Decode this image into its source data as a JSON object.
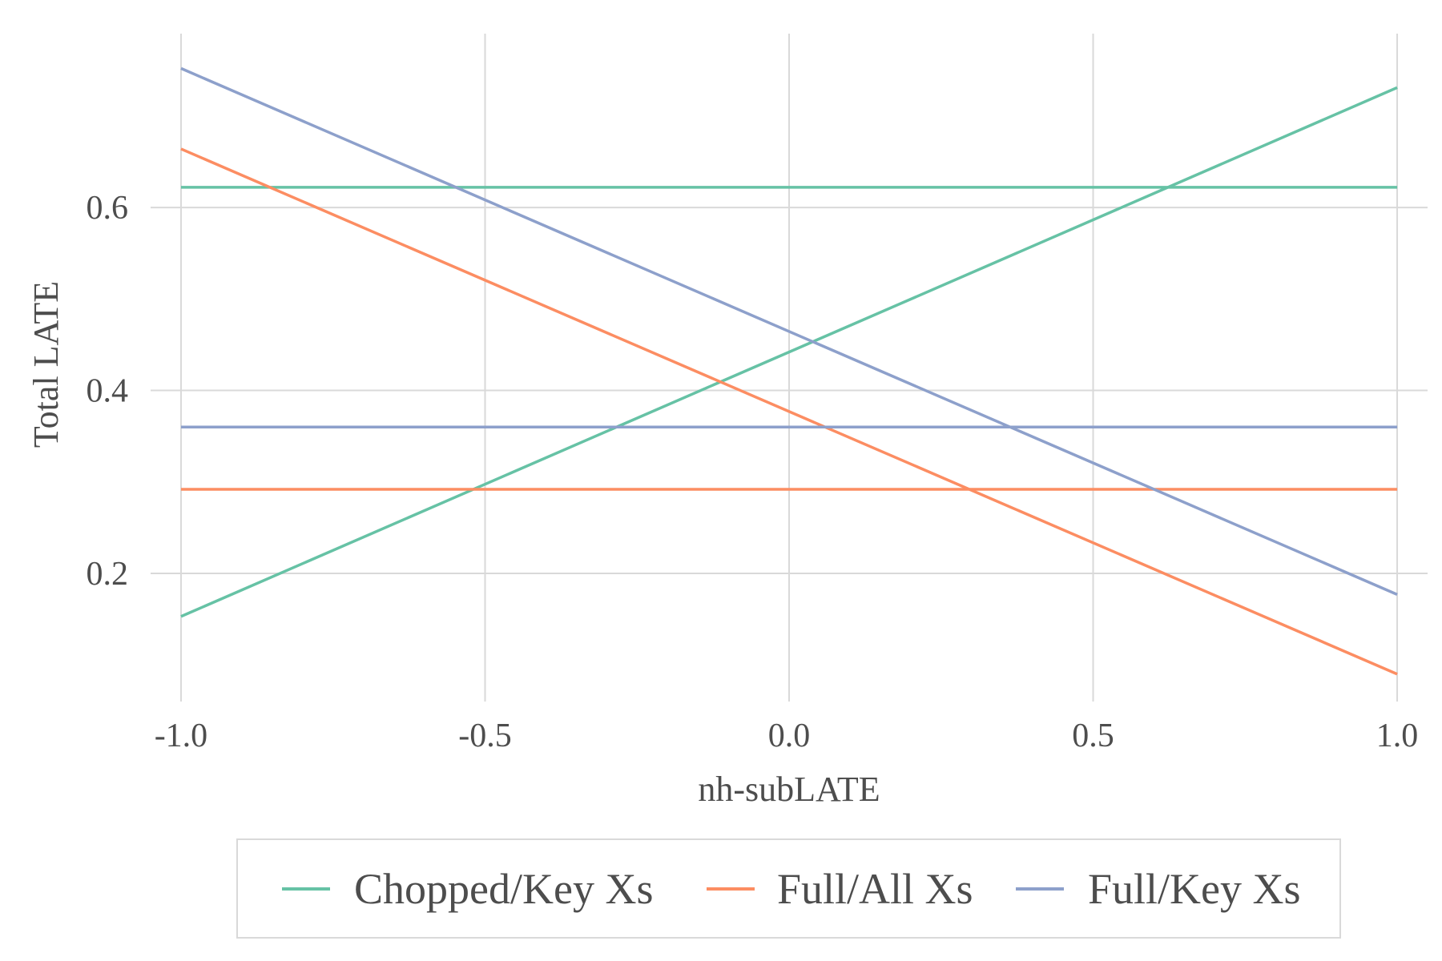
{
  "chart_data": {
    "type": "line",
    "title": "",
    "xlabel": "nh-subLATE",
    "ylabel": "Total LATE",
    "xlim": [
      -1.05,
      1.05
    ],
    "ylim": [
      0.06,
      0.79
    ],
    "x_ticks": [
      -1.0,
      -0.5,
      0.0,
      0.5,
      1.0
    ],
    "x_tick_labels": [
      "-1.0",
      "-0.5",
      "0.0",
      "0.5",
      "1.0"
    ],
    "y_ticks": [
      0.2,
      0.4,
      0.6
    ],
    "y_tick_labels": [
      "0.2",
      "0.4",
      "0.6"
    ],
    "grid": true,
    "legend_position": "bottom",
    "legend": [
      {
        "name": "Chopped/Key Xs",
        "color": "#66c2a5"
      },
      {
        "name": "Full/All Xs",
        "color": "#fc8d62"
      },
      {
        "name": "Full/Key Xs",
        "color": "#8da0cb"
      }
    ],
    "series": [
      {
        "group": "Chopped/Key Xs",
        "color": "#66c2a5",
        "x": [
          -1.0,
          1.0
        ],
        "y": [
          0.622,
          0.622
        ]
      },
      {
        "group": "Chopped/Key Xs",
        "color": "#66c2a5",
        "x": [
          -1.0,
          1.0
        ],
        "y": [
          0.153,
          0.731
        ]
      },
      {
        "group": "Full/All Xs",
        "color": "#fc8d62",
        "x": [
          -1.0,
          1.0
        ],
        "y": [
          0.292,
          0.292
        ]
      },
      {
        "group": "Full/All Xs",
        "color": "#fc8d62",
        "x": [
          -1.0,
          1.0
        ],
        "y": [
          0.664,
          0.09
        ]
      },
      {
        "group": "Full/Key Xs",
        "color": "#8da0cb",
        "x": [
          -1.0,
          1.0
        ],
        "y": [
          0.36,
          0.36
        ]
      },
      {
        "group": "Full/Key Xs",
        "color": "#8da0cb",
        "x": [
          -1.0,
          1.0
        ],
        "y": [
          0.752,
          0.177
        ]
      }
    ]
  }
}
